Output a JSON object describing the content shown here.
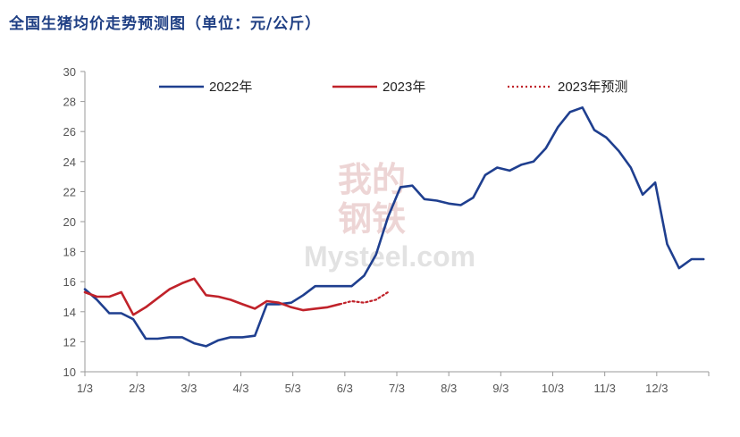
{
  "title": "全国生猪均价走势预测图（单位：元/公斤）",
  "watermark": {
    "cn_line1": "我的",
    "cn_line2": "钢铁",
    "en": "Mysteel.com"
  },
  "colors": {
    "s2022": "#1f3f8f",
    "s2023": "#c0222a",
    "forecast": "#c0222a",
    "title": "#1f3f84",
    "axis": "#9a9a9a"
  },
  "chart_data": {
    "type": "line",
    "title": "全国生猪均价走势预测图（单位：元/公斤）",
    "xlabel": "",
    "ylabel": "",
    "ylim": [
      10,
      30
    ],
    "yticks": [
      10,
      12,
      14,
      16,
      18,
      20,
      22,
      24,
      26,
      28,
      30
    ],
    "xlim": [
      0,
      12
    ],
    "xtick_labels": [
      "1/3",
      "2/3",
      "3/3",
      "4/3",
      "5/3",
      "6/3",
      "7/3",
      "8/3",
      "9/3",
      "10/3",
      "11/3",
      "12/3"
    ],
    "grid": false,
    "legend_position": "top",
    "series": [
      {
        "name": "2022年",
        "style": "solid",
        "x": [
          0,
          0.23,
          0.47,
          0.7,
          0.93,
          1.17,
          1.4,
          1.63,
          1.87,
          2.1,
          2.33,
          2.57,
          2.8,
          3.03,
          3.27,
          3.5,
          3.73,
          3.97,
          4.2,
          4.43,
          4.67,
          4.9,
          5.13,
          5.37,
          5.6,
          5.83,
          6.07,
          6.3,
          6.53,
          6.77,
          7,
          7.23,
          7.47,
          7.7,
          7.93,
          8.17,
          8.4,
          8.63,
          8.87,
          9.1,
          9.33,
          9.57,
          9.8,
          10.03,
          10.27,
          10.5,
          10.73,
          10.97,
          11.2,
          11.43,
          11.67,
          11.9
        ],
        "values": [
          15.5,
          14.8,
          13.9,
          13.9,
          13.5,
          12.2,
          12.2,
          12.3,
          12.3,
          11.9,
          11.7,
          12.1,
          12.3,
          12.3,
          12.4,
          14.5,
          14.5,
          14.6,
          15.1,
          15.7,
          15.7,
          15.7,
          15.7,
          16.4,
          17.8,
          20.3,
          22.3,
          22.4,
          21.5,
          21.4,
          21.2,
          21.1,
          21.6,
          23.1,
          23.6,
          23.4,
          23.8,
          24.0,
          24.9,
          26.3,
          27.3,
          27.6,
          26.1,
          25.6,
          24.7,
          23.6,
          21.8,
          22.6,
          18.5,
          16.9,
          17.5,
          17.5
        ]
      },
      {
        "name": "2023年",
        "style": "solid",
        "x": [
          0,
          0.23,
          0.47,
          0.7,
          0.93,
          1.17,
          1.4,
          1.63,
          1.87,
          2.1,
          2.33,
          2.57,
          2.8,
          3.03,
          3.27,
          3.5,
          3.73,
          3.97,
          4.2,
          4.43,
          4.67,
          4.9
        ],
        "values": [
          15.3,
          15.0,
          15.0,
          15.3,
          13.8,
          14.3,
          14.9,
          15.5,
          15.9,
          16.2,
          15.1,
          15.0,
          14.8,
          14.5,
          14.2,
          14.7,
          14.6,
          14.3,
          14.1,
          14.2,
          14.3,
          14.5
        ]
      },
      {
        "name": "2023年预测",
        "style": "dotted",
        "x": [
          4.9,
          5.13,
          5.37,
          5.6,
          5.83
        ],
        "values": [
          14.5,
          14.7,
          14.6,
          14.8,
          15.3
        ]
      }
    ]
  }
}
